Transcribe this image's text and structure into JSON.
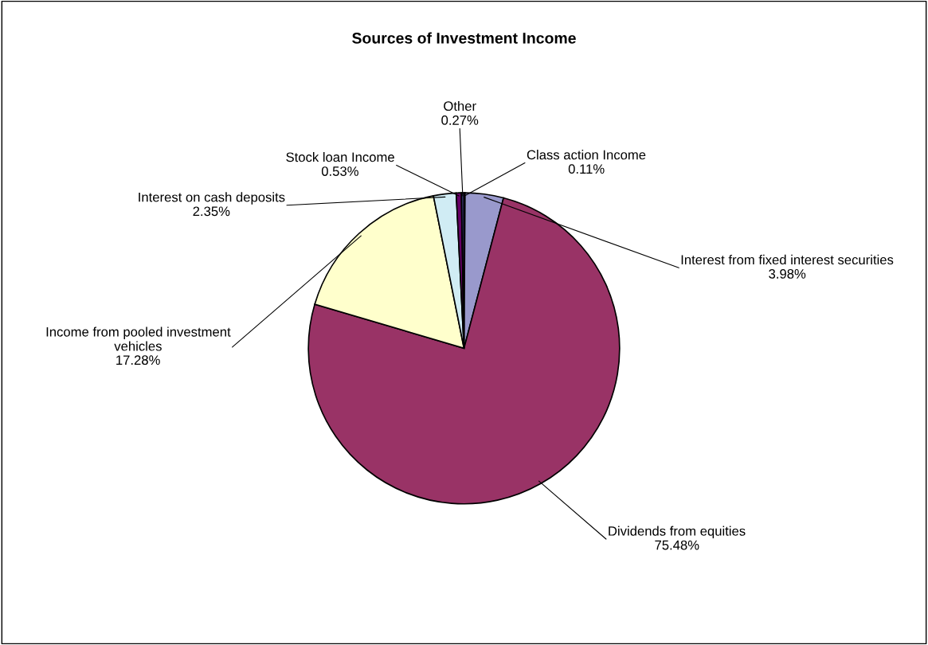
{
  "chart_data": {
    "type": "pie",
    "title": "Sources of Investment Income",
    "categories": [
      "Class action Income",
      "Interest from fixed interest securities",
      "Dividends from equities",
      "Income from pooled investment vehicles",
      "Interest on cash deposits",
      "Stock loan Income",
      "Other"
    ],
    "values": [
      0.11,
      3.98,
      75.48,
      17.28,
      2.35,
      0.53,
      0.27
    ],
    "colors": [
      "#1f6fc0",
      "#9999cc",
      "#993366",
      "#ffffcc",
      "#d0ecf4",
      "#660066",
      "#333366"
    ],
    "value_labels": [
      "0.11%",
      "3.98%",
      "75.48%",
      "17.28%",
      "2.35%",
      "0.53%",
      "0.27%"
    ]
  }
}
